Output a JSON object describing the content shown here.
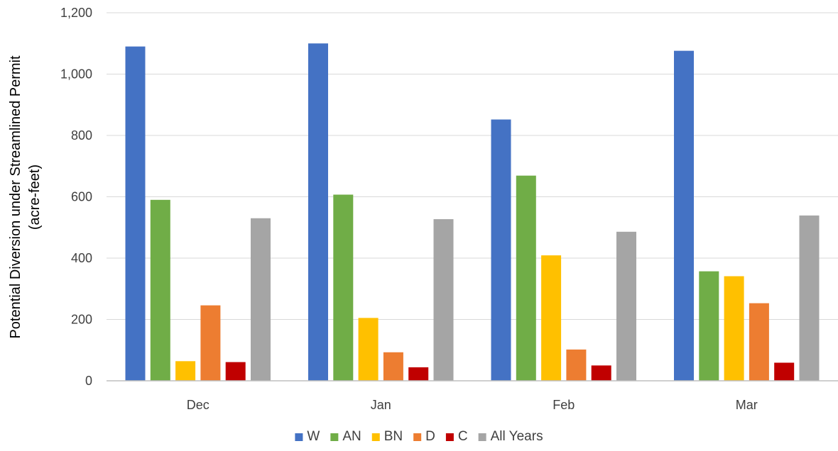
{
  "chart_data": {
    "type": "bar",
    "title": "",
    "xlabel": "",
    "ylabel_lines": [
      "Potential Diversion under Streamlined Permit",
      "(acre-feet)"
    ],
    "categories": [
      "Dec",
      "Jan",
      "Feb",
      "Mar"
    ],
    "ylim": [
      0,
      1200
    ],
    "yticks": [
      0,
      200,
      400,
      600,
      800,
      1000,
      1200
    ],
    "ytick_labels": [
      "0",
      "200",
      "400",
      "600",
      "800",
      "1,000",
      "1,200"
    ],
    "grid": true,
    "legend_position": "bottom",
    "series": [
      {
        "name": "W",
        "color": "#4472C4",
        "values": [
          1090,
          1100,
          852,
          1076
        ]
      },
      {
        "name": "AN",
        "color": "#70AD47",
        "values": [
          590,
          607,
          669,
          357
        ]
      },
      {
        "name": "BN",
        "color": "#FFC000",
        "values": [
          64,
          205,
          409,
          341
        ]
      },
      {
        "name": "D",
        "color": "#ED7D31",
        "values": [
          246,
          93,
          102,
          253
        ]
      },
      {
        "name": "C",
        "color": "#C00000",
        "values": [
          61,
          44,
          50,
          59
        ]
      },
      {
        "name": "All Years",
        "color": "#A5A5A5",
        "values": [
          530,
          527,
          486,
          539
        ]
      }
    ]
  }
}
